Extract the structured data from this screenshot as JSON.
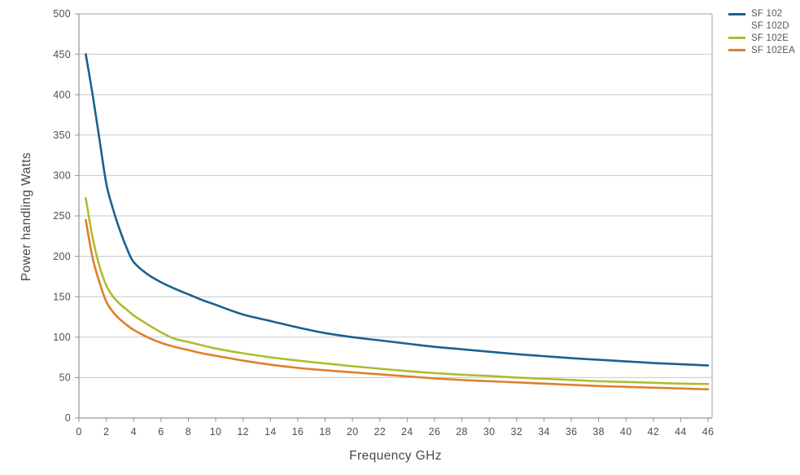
{
  "chart_data": {
    "type": "line",
    "title": "",
    "xlabel": "Frequency GHz",
    "ylabel": "Power handling Watts",
    "xlim": [
      0,
      46
    ],
    "ylim": [
      0,
      500
    ],
    "x_tick_step": 2,
    "y_tick_step": 50,
    "grid": "horizontal-only",
    "legend_position": "outside-top-right",
    "x": [
      0.5,
      1,
      1.5,
      2,
      2.5,
      3,
      3.5,
      4,
      5,
      6,
      7,
      8,
      9,
      10,
      12,
      14,
      16,
      18,
      20,
      22,
      24,
      26,
      28,
      30,
      32,
      34,
      36,
      38,
      40,
      42,
      44,
      46
    ],
    "series": [
      {
        "name": "SF 102",
        "color": "#1a618f",
        "visible": true,
        "values": [
          450,
          400,
          345,
          290,
          258,
          232,
          210,
          193,
          178,
          168,
          160,
          153,
          146,
          140,
          128,
          120,
          112,
          105,
          100,
          96,
          92,
          88,
          85,
          82,
          79,
          76.5,
          74,
          72,
          70,
          68,
          66.5,
          65
        ]
      },
      {
        "name": "SF 102D",
        "color": null,
        "visible": false,
        "values": []
      },
      {
        "name": "SF 102E",
        "color": "#b1bb2e",
        "visible": true,
        "values": [
          272,
          223,
          188,
          164,
          150,
          141,
          134,
          127,
          116,
          106,
          98,
          94,
          90,
          86,
          80,
          75,
          71,
          67.5,
          64,
          61,
          58,
          55.5,
          53.5,
          52,
          50,
          48.5,
          47,
          45.5,
          44.5,
          43.5,
          42.5,
          42
        ]
      },
      {
        "name": "SF 102EA",
        "color": "#e07f2e",
        "visible": true,
        "values": [
          245,
          198,
          168,
          144,
          131,
          122,
          115,
          109,
          100,
          93,
          88,
          84,
          80,
          77,
          71,
          66,
          62,
          59,
          56.5,
          54,
          51.5,
          49,
          47,
          45.5,
          44,
          42.5,
          41,
          39.5,
          38.5,
          37.5,
          36.5,
          35.5
        ]
      }
    ]
  },
  "axes": {
    "x_tick_labels": [
      "0",
      "2",
      "4",
      "6",
      "8",
      "10",
      "12",
      "14",
      "16",
      "18",
      "20",
      "22",
      "24",
      "26",
      "28",
      "30",
      "32",
      "34",
      "36",
      "38",
      "40",
      "42",
      "44",
      "46"
    ],
    "y_tick_labels": [
      "0",
      "50",
      "100",
      "150",
      "200",
      "250",
      "300",
      "350",
      "400",
      "450",
      "500"
    ]
  },
  "legend": {
    "items": [
      {
        "label": "SF 102",
        "color": "#1a618f"
      },
      {
        "label": "SF 102D",
        "color": null
      },
      {
        "label": "SF 102E",
        "color": "#b1bb2e"
      },
      {
        "label": "SF 102EA",
        "color": "#e07f2e"
      }
    ]
  },
  "colors": {
    "background": "#ffffff",
    "grid": "#c7c8ca",
    "plot_border": "#b2b3b6",
    "axis": "#919397",
    "tick_text": "#4d4f53",
    "axis_title_text": "#46484c",
    "legend_text": "#55575b"
  }
}
